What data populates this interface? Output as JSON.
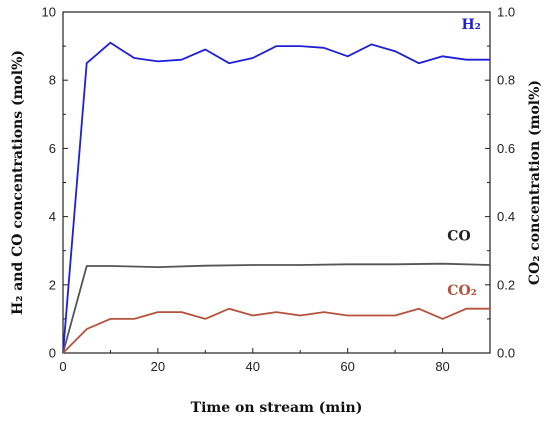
{
  "chart_data": {
    "type": "line",
    "xlabel": "Time on stream (min)",
    "ylabel_left": "H₂ and CO concentrations (mol%)",
    "ylabel_right": "CO₂ concentration (mol%)",
    "xlim": [
      0,
      90
    ],
    "ylim_left": [
      0,
      10
    ],
    "ylim_right": [
      0,
      1.0
    ],
    "x_ticks": [
      "0",
      "20",
      "40",
      "60",
      "80"
    ],
    "y_left_ticks": [
      "0",
      "2",
      "4",
      "6",
      "8",
      "10"
    ],
    "y_right_ticks": [
      "0.0",
      "0.2",
      "0.4",
      "0.6",
      "0.8",
      "1.0"
    ],
    "grid": false,
    "series": [
      {
        "name": "H₂",
        "axis": "left",
        "color": "#1f1fd6",
        "x": [
          0,
          5,
          10,
          15,
          20,
          25,
          30,
          35,
          40,
          45,
          50,
          55,
          60,
          65,
          70,
          75,
          80,
          85,
          90
        ],
        "y": [
          0,
          8.5,
          9.1,
          8.65,
          8.55,
          8.6,
          8.9,
          8.5,
          8.65,
          9.0,
          9.0,
          8.95,
          8.7,
          9.05,
          8.85,
          8.5,
          8.7,
          8.6,
          8.6
        ]
      },
      {
        "name": "CO",
        "axis": "left",
        "color": "#555555",
        "x": [
          0,
          5,
          10,
          20,
          30,
          40,
          50,
          60,
          70,
          80,
          90
        ],
        "y": [
          0,
          2.55,
          2.55,
          2.52,
          2.56,
          2.58,
          2.58,
          2.6,
          2.6,
          2.62,
          2.58
        ]
      },
      {
        "name": "CO₂",
        "axis": "right",
        "color": "#b5523b",
        "x": [
          0,
          5,
          10,
          15,
          20,
          25,
          30,
          35,
          40,
          45,
          50,
          55,
          60,
          65,
          70,
          75,
          80,
          85,
          90
        ],
        "y": [
          0,
          0.07,
          0.1,
          0.1,
          0.12,
          0.12,
          0.1,
          0.13,
          0.11,
          0.12,
          0.11,
          0.12,
          0.11,
          0.11,
          0.11,
          0.13,
          0.1,
          0.13,
          0.13
        ]
      }
    ],
    "series_labels": [
      {
        "text": "H₂",
        "color": "#1f1fd6",
        "x": 84,
        "y": 9.5,
        "axis": "left"
      },
      {
        "text": "CO",
        "color": "#222222",
        "x": 81,
        "y": 3.3,
        "axis": "left"
      },
      {
        "text": "CO₂",
        "color": "#b5523b",
        "x": 81,
        "y": 0.17,
        "axis": "right"
      }
    ]
  }
}
